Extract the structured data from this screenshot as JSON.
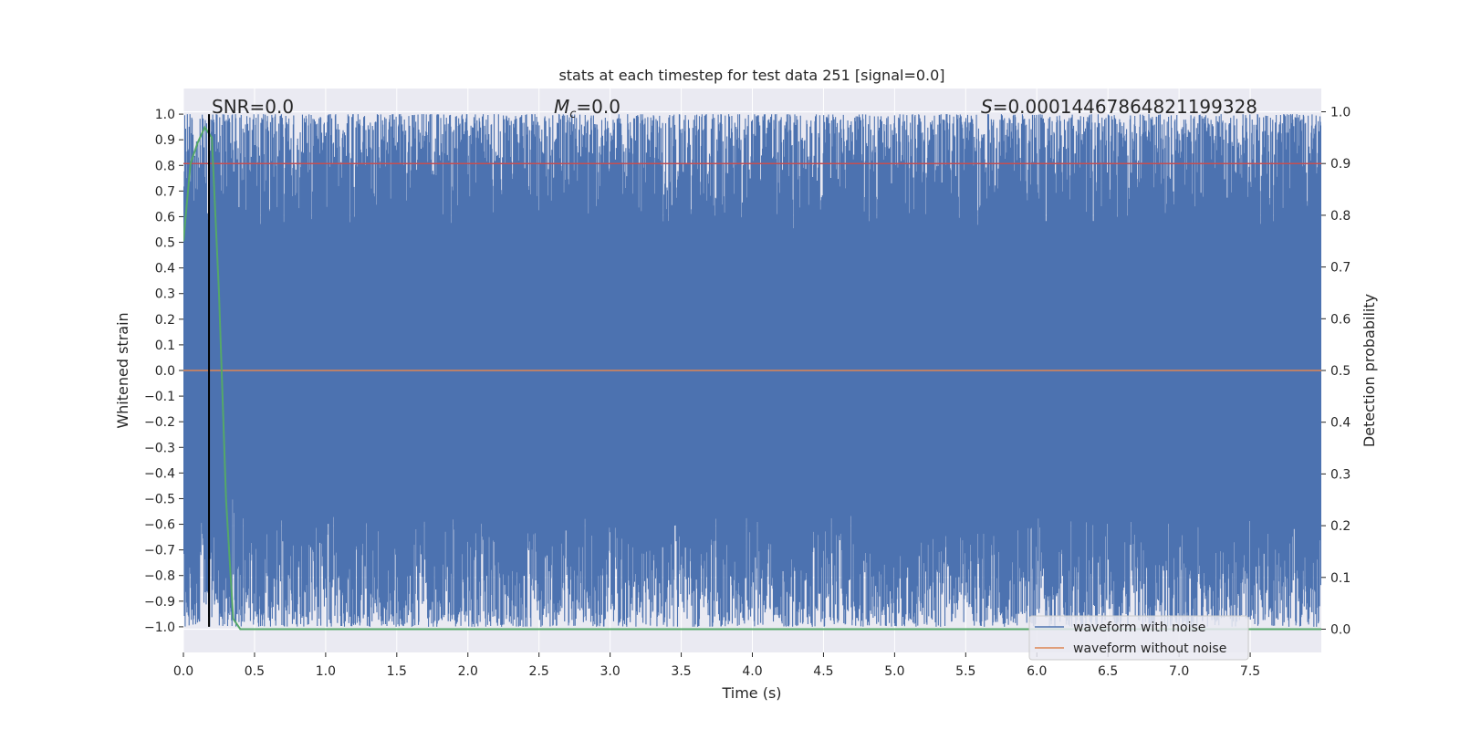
{
  "chart_data": {
    "type": "line",
    "title": "stats at each timestep for test data 251 [signal=0.0]",
    "xlabel": "Time (s)",
    "ylabel": "Whitened strain",
    "y2label": "Detection probability",
    "xlim": [
      0.0,
      8.0
    ],
    "ylim": [
      -1.1,
      1.1
    ],
    "y2lim": [
      -0.045,
      1.045
    ],
    "xticks": [
      "0.0",
      "0.5",
      "1.0",
      "1.5",
      "2.0",
      "2.5",
      "3.0",
      "3.5",
      "4.0",
      "4.5",
      "5.0",
      "5.5",
      "6.0",
      "6.5",
      "7.0",
      "7.5"
    ],
    "yticks": [
      "1.0",
      "0.9",
      "0.8",
      "0.7",
      "0.6",
      "0.5",
      "0.4",
      "0.3",
      "0.2",
      "0.1",
      "0.0",
      "−0.1",
      "−0.2",
      "−0.3",
      "−0.4",
      "−0.5",
      "−0.6",
      "−0.7",
      "−0.8",
      "−0.9",
      "−1.0"
    ],
    "y2ticks": [
      "1.0",
      "0.9",
      "0.8",
      "0.7",
      "0.6",
      "0.5",
      "0.4",
      "0.3",
      "0.2",
      "0.1",
      "0.0"
    ],
    "grid": true,
    "legend_position": "bottom-right",
    "annotations": {
      "snr": "SNR=0.0",
      "mc": "=0.0",
      "mc_symbol": "M",
      "mc_sub": "c",
      "s": "=0.00014467864821199328",
      "s_symbol": "S"
    },
    "vertical_marker_x": 0.18,
    "series": [
      {
        "name": "waveform with noise",
        "axis": "left",
        "color": "#4c72b0",
        "description_range": [
          -1.0,
          1.0
        ]
      },
      {
        "name": "waveform without noise",
        "axis": "left",
        "color": "#dd8452",
        "x": [
          0.0,
          8.0
        ],
        "y": [
          0.0,
          0.0
        ]
      },
      {
        "axis": "right",
        "color": "#55a868",
        "x": [
          0.0,
          0.05,
          0.1,
          0.15,
          0.2,
          0.25,
          0.3,
          0.35,
          0.4,
          0.5,
          1.0,
          2.0,
          3.0,
          4.0,
          5.0,
          6.0,
          7.0,
          8.0
        ],
        "y": [
          0.75,
          0.9,
          0.94,
          0.97,
          0.95,
          0.65,
          0.25,
          0.02,
          0.0,
          0.0,
          0.0,
          0.0,
          0.0,
          0.0,
          0.0,
          0.0,
          0.0,
          0.0
        ]
      },
      {
        "axis": "right",
        "color": "#c44e52",
        "x": [
          0.0,
          8.0
        ],
        "y": [
          0.9,
          0.9
        ]
      }
    ],
    "colors": {
      "plot_bg": "#eaeaf2",
      "grid": "#ffffff",
      "marker": "#000000"
    }
  }
}
